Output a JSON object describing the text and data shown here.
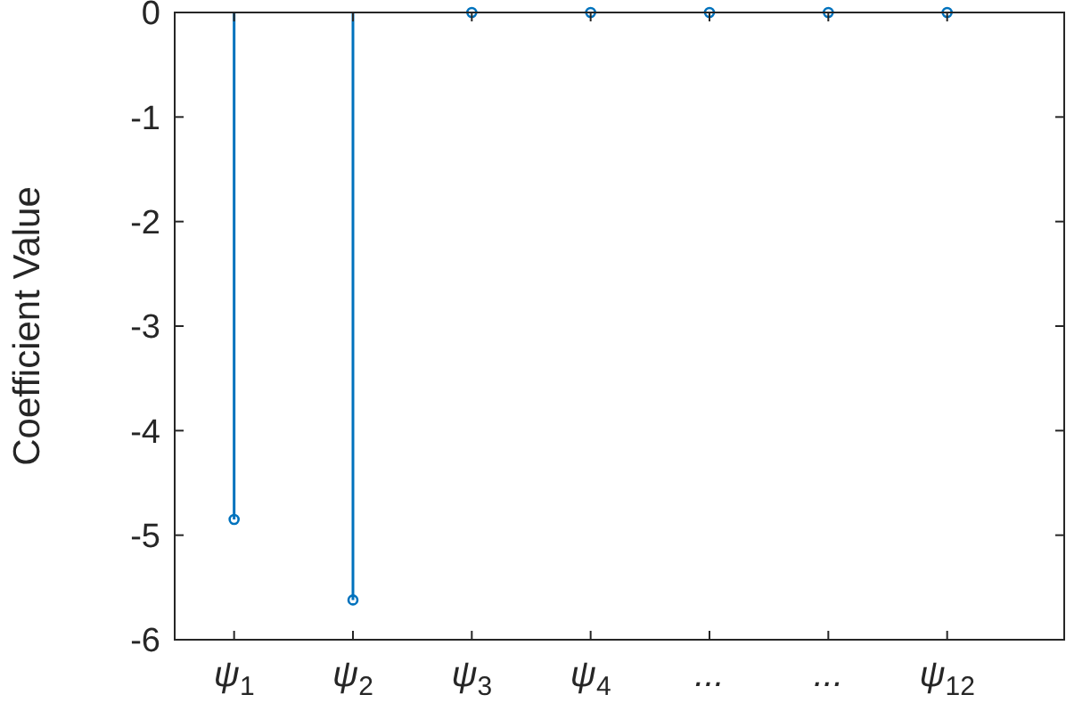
{
  "chart_data": {
    "type": "lollipop",
    "ylabel": "Coefficient Value",
    "categories": [
      "ψ$_{1}$",
      "ψ$_{2}$",
      "ψ$_{3}$",
      "ψ$_{4}$",
      "...",
      "...",
      "ψ$_{12}$"
    ],
    "series": [
      {
        "color": "#0072bd",
        "values": [
          -4.85,
          -5.62,
          0,
          0,
          0,
          0,
          0
        ]
      }
    ],
    "ylim": [
      -6,
      0
    ],
    "yticks": [
      -6,
      -5,
      -4,
      -3,
      -2,
      -1,
      0
    ],
    "marker": "circle"
  }
}
